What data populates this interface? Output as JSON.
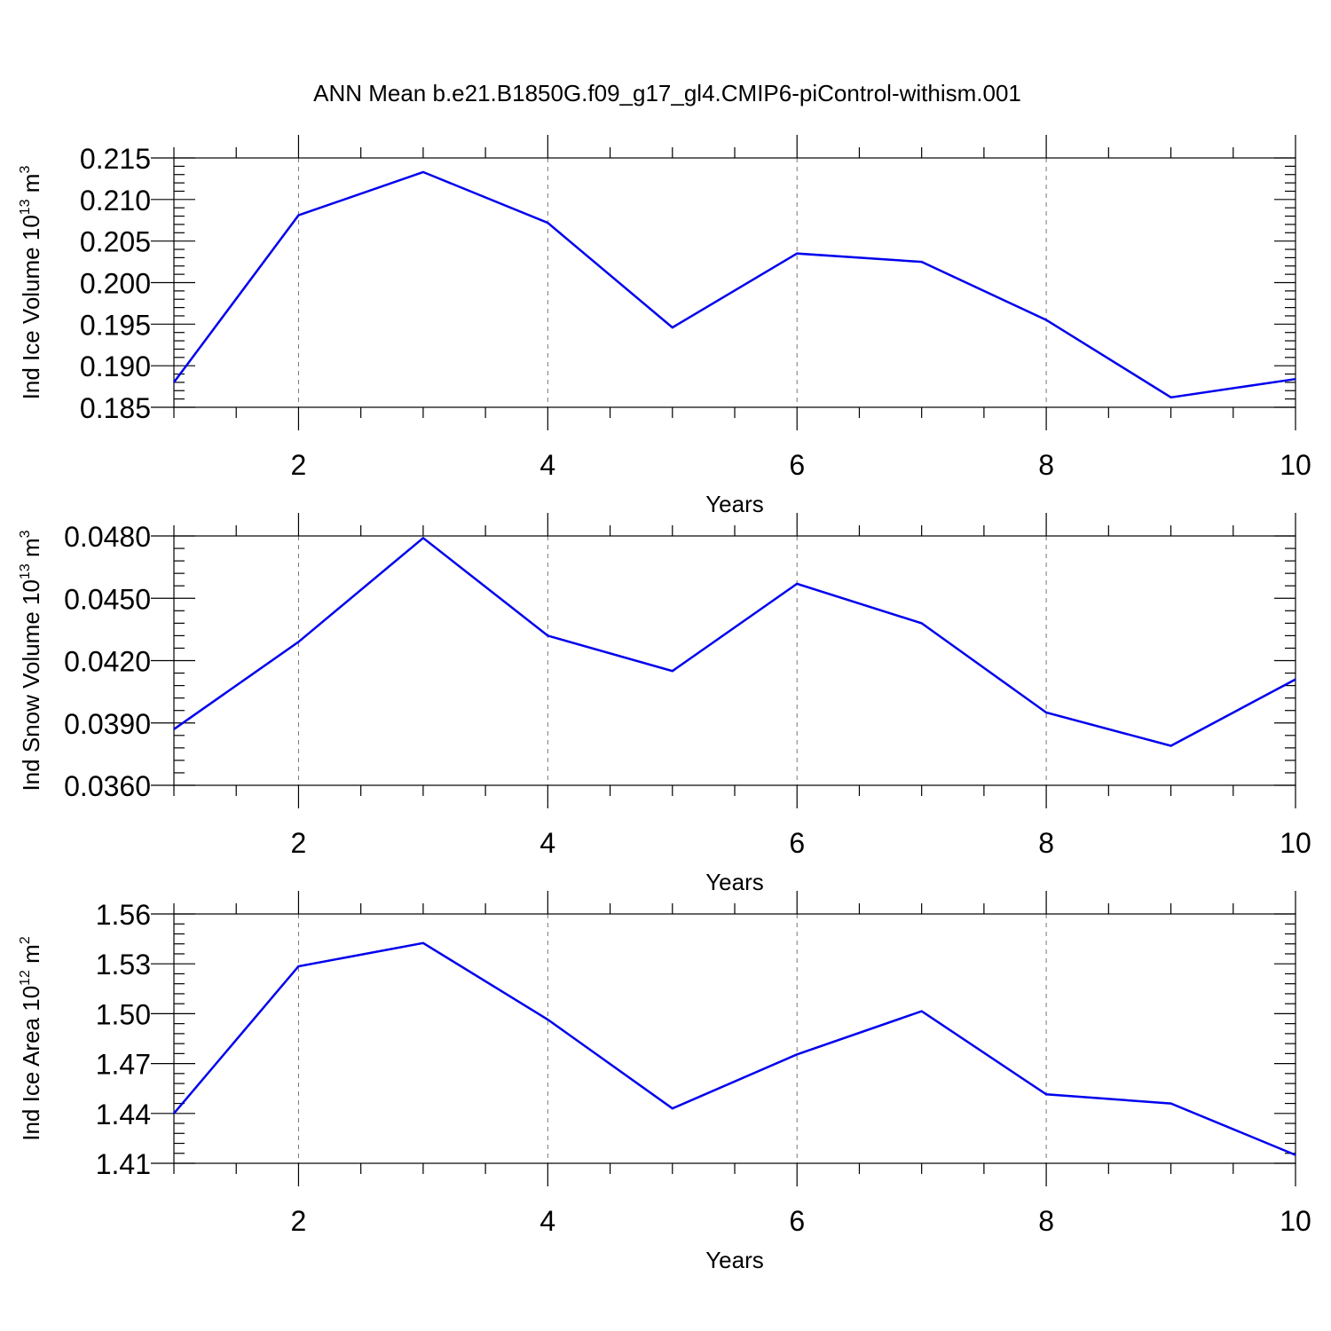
{
  "title": "ANN Mean b.e21.B1850G.f09_g17_gl4.CMIP6-piControl-withism.001",
  "line_color": "#0000ee",
  "chart_data": [
    {
      "type": "line",
      "xlabel": "Years",
      "ylabel": "Ind Ice Volume 10",
      "ylabel_exp": "13",
      "ylabel_unit": " m",
      "ylabel_unit_exp": "3",
      "xlim": [
        1,
        10
      ],
      "ylim": [
        0.185,
        0.215
      ],
      "x_ticks": [
        2,
        4,
        6,
        8,
        10
      ],
      "x_tick_labels": [
        "2",
        "4",
        "6",
        "8",
        "10"
      ],
      "y_ticks": [
        0.185,
        0.19,
        0.195,
        0.2,
        0.205,
        0.21,
        0.215
      ],
      "y_tick_labels": [
        "0.185",
        "0.190",
        "0.195",
        "0.200",
        "0.205",
        "0.210",
        "0.215"
      ],
      "x": [
        1,
        2,
        3,
        4,
        5,
        6,
        7,
        8,
        9,
        10
      ],
      "y": [
        0.188,
        0.2081,
        0.2133,
        0.2072,
        0.1946,
        0.2035,
        0.2025,
        0.1955,
        0.1862,
        0.1884
      ]
    },
    {
      "type": "line",
      "xlabel": "Years",
      "ylabel": "Ind Snow Volume 10",
      "ylabel_exp": "13",
      "ylabel_unit": " m",
      "ylabel_unit_exp": "3",
      "xlim": [
        1,
        10
      ],
      "ylim": [
        0.036,
        0.048
      ],
      "x_ticks": [
        2,
        4,
        6,
        8,
        10
      ],
      "x_tick_labels": [
        "2",
        "4",
        "6",
        "8",
        "10"
      ],
      "y_ticks": [
        0.036,
        0.039,
        0.042,
        0.045,
        0.048
      ],
      "y_tick_labels": [
        "0.0360",
        "0.0390",
        "0.0420",
        "0.0450",
        "0.0480"
      ],
      "x": [
        1,
        2,
        3,
        4,
        5,
        6,
        7,
        8,
        9,
        10
      ],
      "y": [
        0.0387,
        0.0429,
        0.0479,
        0.0432,
        0.0415,
        0.0457,
        0.0438,
        0.0395,
        0.0379,
        0.0411
      ]
    },
    {
      "type": "line",
      "xlabel": "Years",
      "ylabel": "Ind Ice Area 10",
      "ylabel_exp": "12",
      "ylabel_unit": " m",
      "ylabel_unit_exp": "2",
      "xlim": [
        1,
        10
      ],
      "ylim": [
        1.41,
        1.56
      ],
      "x_ticks": [
        2,
        4,
        6,
        8,
        10
      ],
      "x_tick_labels": [
        "2",
        "4",
        "6",
        "8",
        "10"
      ],
      "y_ticks": [
        1.41,
        1.44,
        1.47,
        1.5,
        1.53,
        1.56
      ],
      "y_tick_labels": [
        "1.41",
        "1.44",
        "1.47",
        "1.50",
        "1.53",
        "1.56"
      ],
      "x": [
        1,
        2,
        3,
        4,
        5,
        6,
        7,
        8,
        9,
        10
      ],
      "y": [
        1.44,
        1.5285,
        1.5425,
        1.4965,
        1.443,
        1.4755,
        1.5015,
        1.4515,
        1.446,
        1.415
      ]
    }
  ]
}
